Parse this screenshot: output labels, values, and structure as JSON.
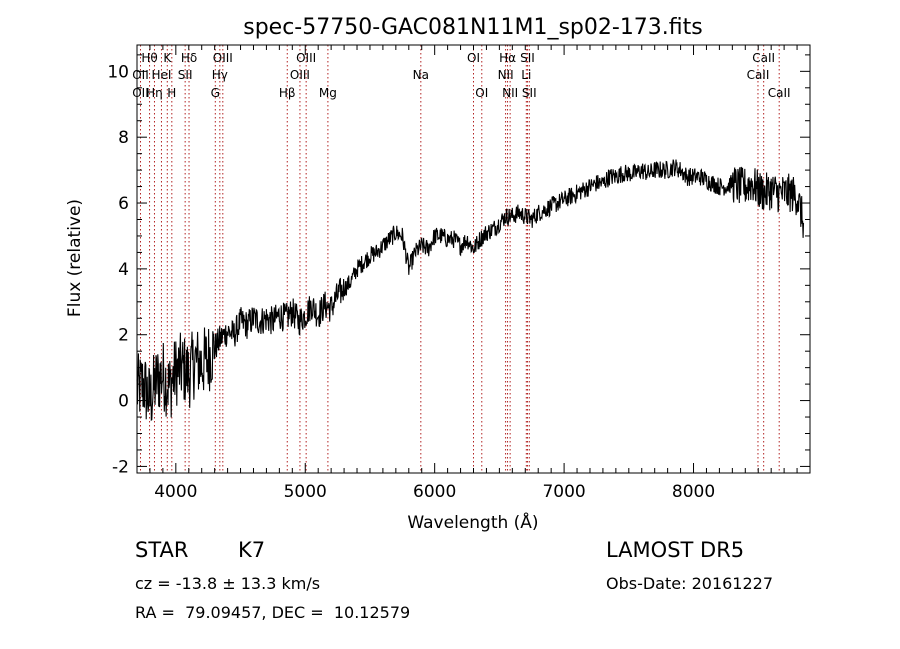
{
  "chart_data": {
    "type": "line",
    "title": "spec-57750-GAC081N11M1_sp02-173.fits",
    "xlabel": "Wavelength (Å)",
    "ylabel": "Flux (relative)",
    "xlim": [
      3700,
      8900
    ],
    "ylim": [
      -2.2,
      10.8
    ],
    "xticks": [
      4000,
      5000,
      6000,
      7000,
      8000
    ],
    "yticks": [
      -2,
      0,
      2,
      4,
      6,
      8,
      10
    ],
    "grid": false,
    "line_color": "#000000",
    "marker_color": "#b22222",
    "series": [
      {
        "x": [
          3700,
          3750,
          3800,
          3850,
          3900,
          3950,
          4000,
          4050,
          4100,
          4150,
          4200,
          4250,
          4300,
          4350,
          4400,
          4450,
          4500,
          4550,
          4600,
          4650,
          4700,
          4750,
          4800,
          4850,
          4900,
          4950,
          5000,
          5050,
          5100,
          5150,
          5200,
          5250,
          5300,
          5350,
          5400,
          5450,
          5500,
          5550,
          5600,
          5650,
          5700,
          5750,
          5800,
          5850,
          5900,
          5950,
          6000,
          6050,
          6100,
          6150,
          6200,
          6250,
          6300,
          6350,
          6400,
          6450,
          6500,
          6550,
          6600,
          6650,
          6700,
          6750,
          6800,
          6850,
          6900,
          6950,
          7000,
          7050,
          7100,
          7150,
          7200,
          7250,
          7300,
          7350,
          7400,
          7450,
          7500,
          7550,
          7600,
          7650,
          7700,
          7750,
          7800,
          7850,
          7900,
          7950,
          8000,
          8050,
          8100,
          8150,
          8200,
          8250,
          8300,
          8350,
          8400,
          8450,
          8500,
          8550,
          8600,
          8650,
          8700,
          8750,
          8800,
          8850
        ],
        "y": [
          0.3,
          0.5,
          0.0,
          0.6,
          0.8,
          0.4,
          0.9,
          1.0,
          0.8,
          1.2,
          1.1,
          1.3,
          1.6,
          1.9,
          2.1,
          2.0,
          2.4,
          2.3,
          2.5,
          2.4,
          2.5,
          2.4,
          2.6,
          2.5,
          2.7,
          2.4,
          2.6,
          2.9,
          2.6,
          2.9,
          2.8,
          3.2,
          3.4,
          3.6,
          4.0,
          4.2,
          4.4,
          4.5,
          4.7,
          4.9,
          5.1,
          5.0,
          4.0,
          4.5,
          4.7,
          4.6,
          5.0,
          5.0,
          4.9,
          4.9,
          4.7,
          4.9,
          4.6,
          4.9,
          5.1,
          5.2,
          5.4,
          5.6,
          5.6,
          5.7,
          5.6,
          5.5,
          5.7,
          5.8,
          5.9,
          6.0,
          6.1,
          6.2,
          6.3,
          6.4,
          6.5,
          6.6,
          6.6,
          6.8,
          6.8,
          6.9,
          6.9,
          6.9,
          7.0,
          6.9,
          7.0,
          7.0,
          7.0,
          7.1,
          7.0,
          6.8,
          6.8,
          6.8,
          6.7,
          6.6,
          6.5,
          6.5,
          6.6,
          6.5,
          6.5,
          6.6,
          6.4,
          6.3,
          6.4,
          6.3,
          6.3,
          6.3,
          6.2,
          5.4
        ]
      }
    ],
    "spectral_lines": [
      {
        "name": "Hθ",
        "x": 3797,
        "row": 1
      },
      {
        "name": "OII",
        "x": 3727,
        "row": 2
      },
      {
        "name": "OII",
        "x": 3727,
        "row": 3
      },
      {
        "name": "Hη",
        "x": 3835,
        "row": 3
      },
      {
        "name": "HeI",
        "x": 3889,
        "row": 2
      },
      {
        "name": "K",
        "x": 3934,
        "row": 1
      },
      {
        "name": "H",
        "x": 3969,
        "row": 3
      },
      {
        "name": "Hδ",
        "x": 4102,
        "row": 1
      },
      {
        "name": "SII",
        "x": 4072,
        "row": 2
      },
      {
        "name": "OIII",
        "x": 4363,
        "row": 1
      },
      {
        "name": "Hγ",
        "x": 4340,
        "row": 2
      },
      {
        "name": "G",
        "x": 4305,
        "row": 3
      },
      {
        "name": "Hβ",
        "x": 4861,
        "row": 3
      },
      {
        "name": "OIII",
        "x": 5007,
        "row": 1
      },
      {
        "name": "OIII",
        "x": 4959,
        "row": 2
      },
      {
        "name": "Mg",
        "x": 5175,
        "row": 3
      },
      {
        "name": "Na",
        "x": 5893,
        "row": 2
      },
      {
        "name": "OI",
        "x": 6300,
        "row": 1
      },
      {
        "name": "OI",
        "x": 6364,
        "row": 3
      },
      {
        "name": "Hα",
        "x": 6563,
        "row": 1
      },
      {
        "name": "NII",
        "x": 6548,
        "row": 2
      },
      {
        "name": "NII",
        "x": 6583,
        "row": 3
      },
      {
        "name": "SII",
        "x": 6717,
        "row": 1
      },
      {
        "name": "Li",
        "x": 6708,
        "row": 2
      },
      {
        "name": "SII",
        "x": 6731,
        "row": 3
      },
      {
        "name": "CaII",
        "x": 8542,
        "row": 1
      },
      {
        "name": "CaII",
        "x": 8498,
        "row": 2
      },
      {
        "name": "CaII",
        "x": 8662,
        "row": 3
      }
    ]
  },
  "info": {
    "object_class": "STAR",
    "subclass": "K7",
    "survey": "LAMOST DR5",
    "redshift": "cz = -13.8 ± 13.3 km/s",
    "obs_date": "Obs-Date: 20161227",
    "coords": "RA =  79.09457, DEC =  10.12579"
  }
}
